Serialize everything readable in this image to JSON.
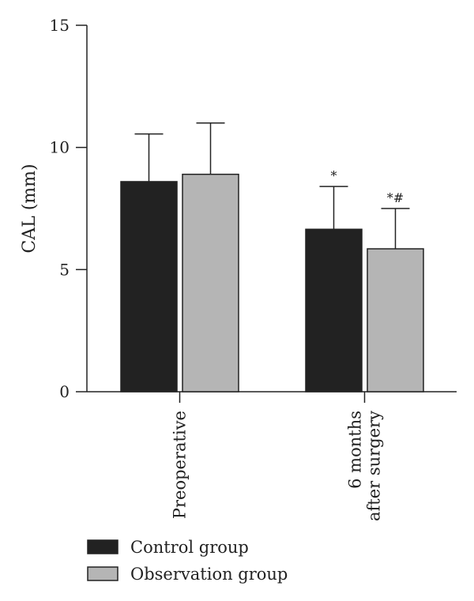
{
  "chart_data": {
    "type": "bar",
    "ylabel": "CAL (mm)",
    "ylim": [
      0,
      15
    ],
    "yticks": [
      0,
      5,
      10,
      15
    ],
    "categories": [
      [
        "Preoperative"
      ],
      [
        "6 months",
        "after surgery"
      ]
    ],
    "series": [
      {
        "name": "Control group",
        "color": "#222222",
        "values": [
          8.6,
          6.65
        ],
        "errors": [
          1.95,
          1.75
        ],
        "annotations": [
          "",
          "*"
        ]
      },
      {
        "name": "Observation group",
        "color": "#b5b5b5",
        "values": [
          8.9,
          5.85
        ],
        "errors": [
          2.1,
          1.65
        ],
        "annotations": [
          "",
          "*#"
        ]
      }
    ],
    "legend": {
      "position": "bottom-left"
    },
    "grid": false
  }
}
